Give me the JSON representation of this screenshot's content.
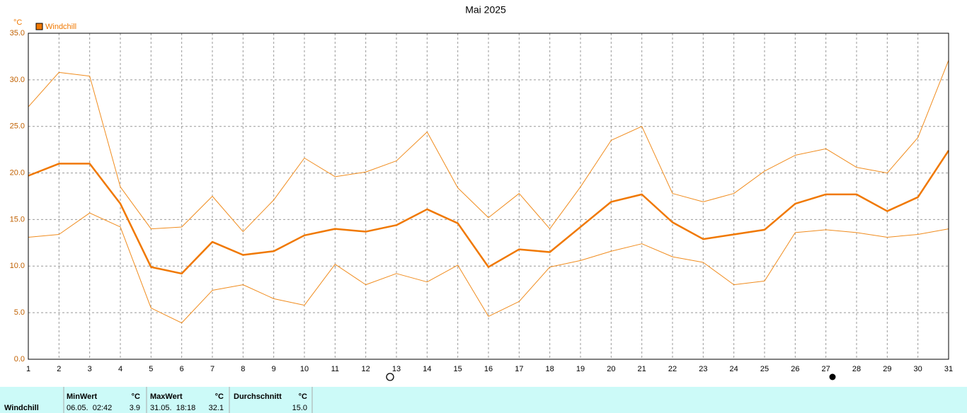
{
  "chart_data": {
    "type": "line",
    "title": "Mai 2025",
    "y_unit": "°C",
    "x": [
      1,
      2,
      3,
      4,
      5,
      6,
      7,
      8,
      9,
      10,
      11,
      12,
      13,
      14,
      15,
      16,
      17,
      18,
      19,
      20,
      21,
      22,
      23,
      24,
      25,
      26,
      27,
      28,
      29,
      30,
      31
    ],
    "xlim": [
      1,
      31
    ],
    "xticks": [
      1,
      2,
      3,
      4,
      5,
      6,
      7,
      8,
      9,
      10,
      11,
      12,
      13,
      14,
      15,
      16,
      17,
      18,
      19,
      20,
      21,
      22,
      23,
      24,
      25,
      26,
      27,
      28,
      29,
      30,
      31
    ],
    "ylim": [
      0,
      35
    ],
    "yticks": [
      {
        "value": 0,
        "label": "0.0"
      },
      {
        "value": 5,
        "label": "5.0"
      },
      {
        "value": 10,
        "label": "10.0"
      },
      {
        "value": 15,
        "label": "15.0"
      },
      {
        "value": 20,
        "label": "20.0"
      },
      {
        "value": 25,
        "label": "25.0"
      },
      {
        "value": 30,
        "label": "30.0"
      },
      {
        "value": 35,
        "label": "35.0"
      }
    ],
    "grid": true,
    "series": [
      {
        "color": "#f08c1e",
        "values": [
          27.1,
          30.8,
          30.4,
          18.5,
          14.0,
          14.2,
          17.5,
          13.7,
          17.1,
          21.6,
          19.6,
          20.1,
          21.3,
          24.4,
          18.4,
          15.2,
          17.8,
          14.0,
          18.5,
          23.5,
          25.0,
          17.8,
          16.9,
          17.8,
          20.2,
          21.9,
          22.6,
          20.6,
          20.0,
          23.8,
          32.1
        ]
      },
      {
        "name": "Windchill",
        "color": "#f07800",
        "values": [
          19.7,
          21.0,
          21.0,
          16.7,
          9.9,
          9.2,
          12.6,
          11.2,
          11.6,
          13.3,
          14.0,
          13.7,
          14.4,
          16.1,
          14.6,
          9.9,
          11.8,
          11.5,
          14.2,
          16.9,
          17.7,
          14.7,
          12.9,
          13.4,
          13.9,
          16.7,
          17.7,
          17.7,
          15.9,
          17.4,
          22.4
        ]
      },
      {
        "color": "#f08c1e",
        "values": [
          13.1,
          13.4,
          15.7,
          14.2,
          5.5,
          3.9,
          7.4,
          8.0,
          6.5,
          5.8,
          10.2,
          8.0,
          9.2,
          8.3,
          10.1,
          4.6,
          6.2,
          9.9,
          10.6,
          11.6,
          12.4,
          11.0,
          10.4,
          8.0,
          8.4,
          13.6,
          13.9,
          13.6,
          13.1,
          13.4,
          14.0
        ]
      }
    ]
  },
  "table": {
    "row_label": "Windchill",
    "columns": [
      {
        "header": "MinWert",
        "unit": "°C",
        "time": "06.05.  02:42",
        "value": "3.9"
      },
      {
        "header": "MaxWert",
        "unit": "°C",
        "time": "31.05.  18:18",
        "value": "32.1"
      },
      {
        "header": "Durchschnitt",
        "unit": "°C",
        "value": "15.0"
      }
    ]
  }
}
